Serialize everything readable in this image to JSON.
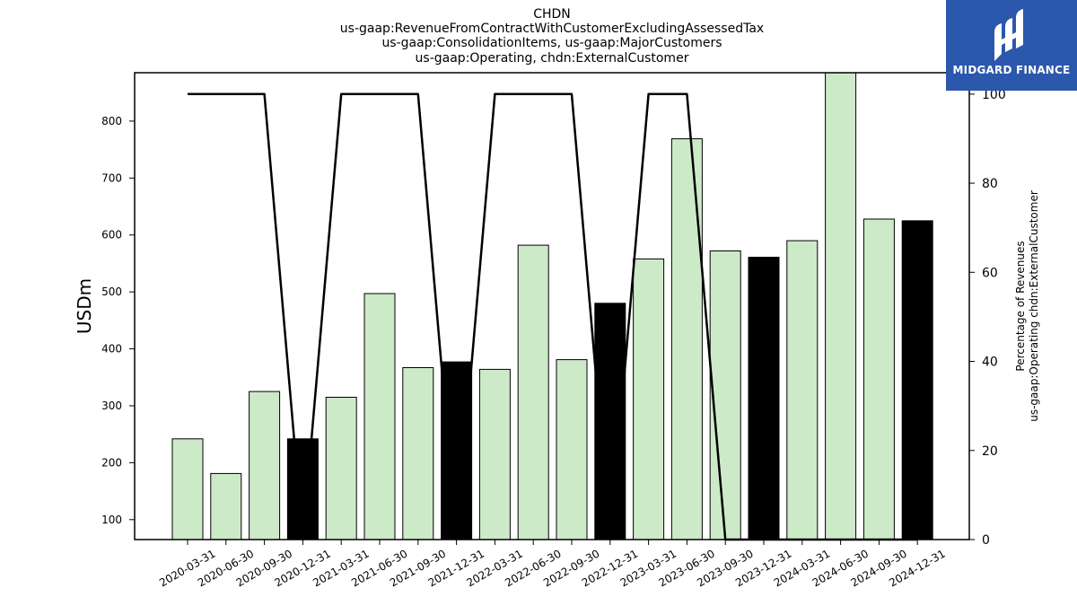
{
  "chart_data": {
    "type": "bar",
    "title_lines": [
      "CHDN",
      "us-gaap:RevenueFromContractWithCustomerExcludingAssessedTax",
      "us-gaap:ConsolidationItems, us-gaap:MajorCustomers",
      "us-gaap:Operating, chdn:ExternalCustomer"
    ],
    "categories": [
      "2020-03-31",
      "2020-06-30",
      "2020-09-30",
      "2020-12-31",
      "2021-03-31",
      "2021-06-30",
      "2021-09-30",
      "2021-12-31",
      "2022-03-31",
      "2022-06-30",
      "2022-09-30",
      "2022-12-31",
      "2023-03-31",
      "2023-06-30",
      "2023-09-30",
      "2023-12-31",
      "2024-03-31",
      "2024-06-30",
      "2024-09-30",
      "2024-12-31"
    ],
    "series": [
      {
        "values": [
          242,
          181,
          325,
          242,
          315,
          497,
          367,
          377,
          364,
          582,
          381,
          480,
          558,
          769,
          572,
          561,
          590,
          890,
          628,
          625
        ],
        "highlight": [
          false,
          false,
          false,
          true,
          false,
          false,
          false,
          true,
          false,
          false,
          false,
          true,
          false,
          false,
          false,
          true,
          false,
          false,
          false,
          true
        ]
      },
      {
        "axis": "right",
        "type": "line",
        "values": [
          100,
          100,
          100,
          0,
          100,
          100,
          100,
          0,
          100,
          100,
          100,
          0,
          100,
          100,
          0,
          0,
          0,
          0,
          0,
          0
        ]
      }
    ],
    "ylabel": "USDm",
    "y2label_lines": [
      "Percentage of Revenues",
      "us-gaap:Operating chdn:ExternalCustomer"
    ],
    "ylim": [
      65,
      885
    ],
    "yticks": [
      100,
      200,
      300,
      400,
      500,
      600,
      700,
      800
    ],
    "y2lim": [
      0,
      104.8
    ],
    "y2ticks": [
      0,
      20,
      40,
      60,
      80,
      100
    ],
    "colors": {
      "bar": "#cdeac8",
      "bar_highlight": "#000000",
      "line": "#000000",
      "logo_bg": "#2b57ad"
    }
  },
  "logo": {
    "text": "MIDGARD FINANCE",
    "icon": "midgard-logo-icon"
  }
}
